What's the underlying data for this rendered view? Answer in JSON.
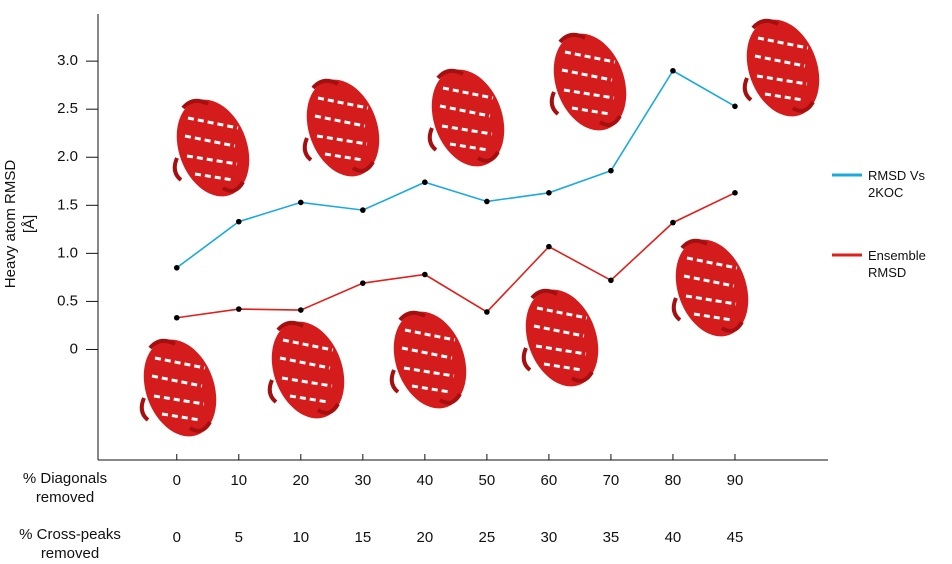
{
  "chart_data": {
    "type": "line",
    "y_label": "Heavy atom RMSD [Å]",
    "x": [
      0,
      10,
      20,
      30,
      40,
      50,
      60,
      70,
      80,
      90
    ],
    "x_row_label": "% Diagonals removed",
    "x2_row_label": "% Cross-peaks removed",
    "x2_labels": [
      0,
      5,
      10,
      15,
      20,
      25,
      30,
      35,
      40,
      45
    ],
    "series": [
      {
        "name": "RMSD Vs 2KOC",
        "color": "#1ba9e0",
        "values": [
          0.85,
          1.33,
          1.53,
          1.45,
          1.74,
          1.54,
          1.63,
          1.86,
          2.9,
          2.53
        ]
      },
      {
        "name": "Ensemble RMSD",
        "color": "#e0201b",
        "values": [
          0.33,
          0.42,
          0.41,
          0.69,
          0.78,
          0.39,
          1.07,
          0.72,
          1.32,
          1.63
        ]
      }
    ],
    "xlim": [
      -12.7,
      105
    ],
    "ylim": [
      -1.15,
      3.48
    ],
    "yticks": [
      0,
      0.5,
      {
        "value": 1,
        "label": "1.0"
      },
      1.5,
      {
        "value": 2,
        "label": "2.0"
      },
      2.5,
      {
        "value": 3,
        "label": "3.0"
      }
    ],
    "marker_color": "#000000"
  }
}
